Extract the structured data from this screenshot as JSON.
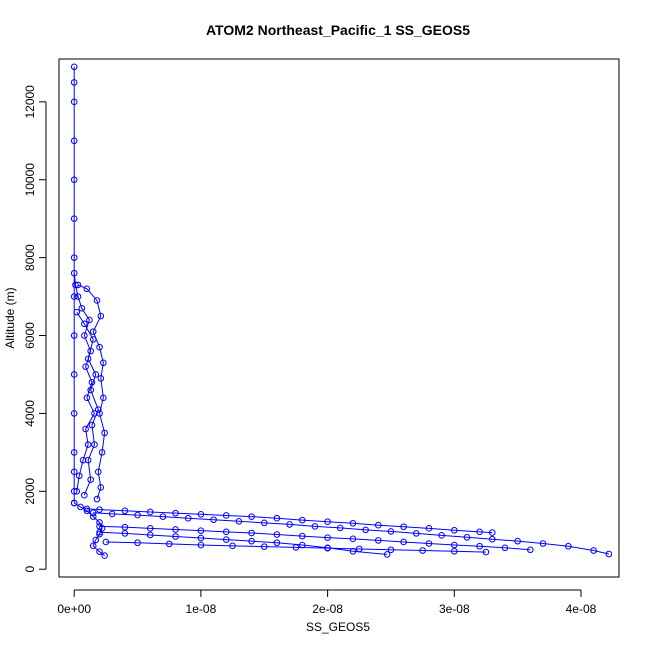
{
  "chart_data": {
    "type": "scatter",
    "title": "ATOM2 Northeast_Pacific_1 SS_GEOS5",
    "xlabel": "SS_GEOS5",
    "ylabel": "Altitude (m)",
    "xlim": [
      -1.2e-09,
      4.3e-08
    ],
    "ylim": [
      -200,
      13100
    ],
    "x_ticks": [
      0,
      1e-08,
      2e-08,
      3e-08,
      4e-08
    ],
    "x_tick_labels": [
      "0e+00",
      "1e-08",
      "2e-08",
      "3e-08",
      "4e-08"
    ],
    "y_ticks": [
      0,
      2000,
      4000,
      6000,
      8000,
      10000,
      12000
    ],
    "y_tick_labels": [
      "0",
      "2000",
      "4000",
      "6000",
      "8000",
      "10000",
      "12000"
    ],
    "marker": "open-circle",
    "connected": true,
    "color": "#0000ff",
    "series": [
      {
        "x": [
          0,
          0,
          0,
          0,
          0,
          0,
          0,
          0,
          0,
          0,
          0,
          0,
          0,
          0,
          0
        ],
        "y": [
          12900,
          12500,
          12000,
          11000,
          10000,
          9000,
          8000,
          7000,
          6000,
          5000,
          4000,
          3000,
          2500,
          2000,
          1700
        ]
      },
      {
        "x": [
          0,
          1e-10,
          3e-10,
          6e-10,
          1.2e-09,
          8e-10,
          1.3e-09,
          9e-10,
          1.4e-09,
          1e-09,
          1.6e-09,
          9e-10,
          1.1e-09,
          7e-10,
          4e-10,
          2e-10
        ],
        "y": [
          7600,
          7300,
          7000,
          6700,
          6400,
          6000,
          5600,
          5200,
          4800,
          4400,
          4000,
          3600,
          3200,
          2800,
          2400,
          2000
        ]
      },
      {
        "x": [
          3e-10,
          1e-09,
          1.8e-09,
          2.1e-09,
          1.5e-09,
          2e-09,
          2.3e-09,
          2.1e-09,
          2.3e-09,
          2e-09,
          2.4e-09,
          2.2e-09,
          1.9e-09,
          2.1e-09,
          1.8e-09
        ],
        "y": [
          7300,
          7200,
          6900,
          6500,
          6100,
          5700,
          5300,
          4900,
          4400,
          4000,
          3500,
          3000,
          2500,
          2100,
          1800
        ]
      },
      {
        "x": [
          2e-10,
          8e-10,
          1.5e-09,
          1.1e-09,
          1.7e-09,
          1.3e-09,
          1.9e-09,
          1.4e-09,
          1.6e-09,
          1.1e-09,
          1.3e-09,
          8e-10
        ],
        "y": [
          6600,
          6300,
          5900,
          5400,
          5000,
          4600,
          4100,
          3700,
          3200,
          2800,
          2300,
          1900
        ]
      },
      {
        "x": [
          0,
          5e-10,
          1e-09,
          1.5e-09,
          2e-09,
          2.2e-09,
          2e-09,
          1.7e-09,
          1.5e-09,
          2e-09,
          2.4e-09
        ],
        "y": [
          1700,
          1600,
          1500,
          1350,
          1200,
          1050,
          900,
          750,
          600,
          450,
          350
        ]
      },
      {
        "x": [
          1e-09,
          2e-09,
          4e-09,
          6e-09,
          8e-09,
          1e-08,
          1.2e-08,
          1.4e-08,
          1.6e-08,
          1.8e-08,
          2e-08,
          2.2e-08,
          2.4e-08,
          2.6e-08,
          2.8e-08,
          3e-08,
          3.2e-08,
          3.3e-08
        ],
        "y": [
          1550,
          1530,
          1500,
          1470,
          1440,
          1410,
          1380,
          1350,
          1310,
          1260,
          1220,
          1180,
          1130,
          1090,
          1050,
          1000,
          960,
          940
        ]
      },
      {
        "x": [
          1.5e-09,
          3e-09,
          5e-09,
          7e-09,
          9e-09,
          1.1e-08,
          1.3e-08,
          1.5e-08,
          1.7e-08,
          1.9e-08,
          2.1e-08,
          2.3e-08,
          2.5e-08,
          2.7e-08,
          2.9e-08,
          3.1e-08,
          3.3e-08,
          3.5e-08,
          3.7e-08,
          3.9e-08,
          4.1e-08,
          4.22e-08
        ],
        "y": [
          1450,
          1420,
          1390,
          1350,
          1310,
          1270,
          1230,
          1190,
          1150,
          1100,
          1060,
          1010,
          970,
          920,
          870,
          820,
          770,
          720,
          660,
          590,
          480,
          390
        ]
      },
      {
        "x": [
          2e-09,
          4e-09,
          6e-09,
          8e-09,
          1e-08,
          1.2e-08,
          1.4e-08,
          1.6e-08,
          1.8e-08,
          2e-08,
          2.2e-08,
          2.4e-08,
          2.6e-08,
          2.8e-08,
          3e-08,
          3.2e-08,
          3.4e-08,
          3.6e-08
        ],
        "y": [
          1100,
          1080,
          1050,
          1020,
          990,
          960,
          930,
          890,
          850,
          810,
          780,
          740,
          700,
          660,
          620,
          590,
          550,
          500
        ]
      },
      {
        "x": [
          2e-09,
          4e-09,
          6e-09,
          8e-09,
          1e-08,
          1.2e-08,
          1.4e-08,
          1.6e-08,
          1.8e-08,
          2e-08,
          2.2e-08,
          2.47e-08
        ],
        "y": [
          950,
          920,
          880,
          840,
          800,
          760,
          720,
          680,
          620,
          550,
          460,
          380
        ]
      },
      {
        "x": [
          2.5e-09,
          5e-09,
          7.5e-09,
          1e-08,
          1.25e-08,
          1.5e-08,
          1.75e-08,
          2e-08,
          2.25e-08,
          2.5e-08,
          2.75e-08,
          3e-08,
          3.25e-08
        ],
        "y": [
          700,
          680,
          650,
          620,
          600,
          580,
          560,
          540,
          520,
          500,
          480,
          460,
          440
        ]
      }
    ]
  }
}
